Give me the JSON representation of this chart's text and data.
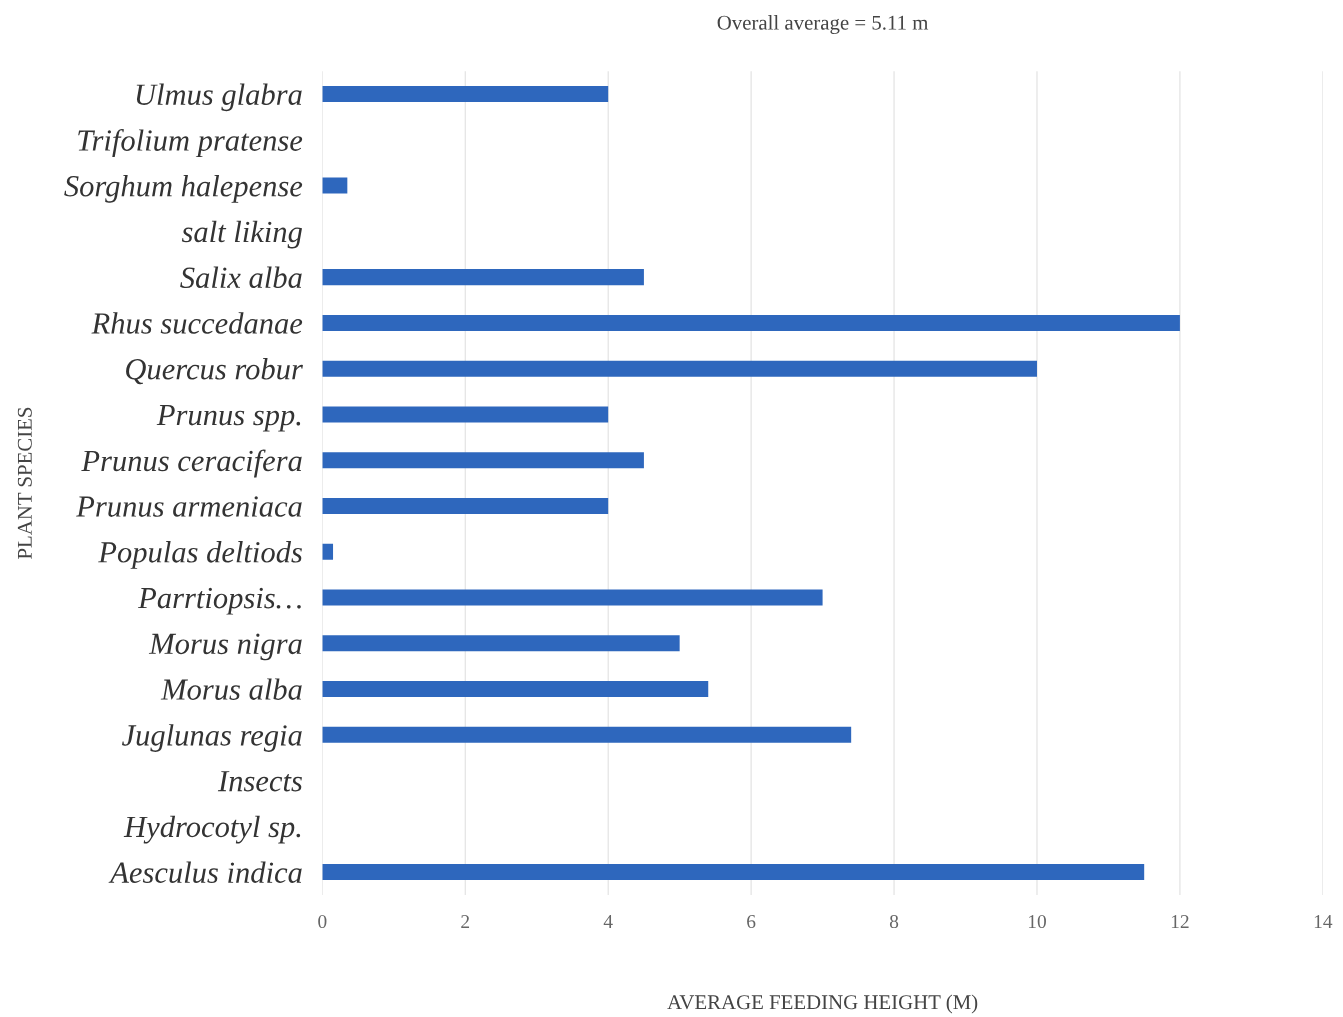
{
  "chart_data": {
    "type": "bar",
    "orientation": "horizontal",
    "title": "Overall average = 5.11 m",
    "xlabel": "AVERAGE FEEDING HEIGHT (M)",
    "ylabel": "PLANT SPECIES",
    "categories": [
      "Ulmus glabra",
      "Trifolium pratense",
      "Sorghum halepense",
      "salt liking",
      "Salix alba",
      "Rhus succedanae",
      "Quercus robur",
      "Prunus spp.",
      "Prunus ceracifera",
      "Prunus armeniaca",
      "Populas deltiods",
      "Parrtiopsis…",
      "Morus nigra",
      "Morus alba",
      "Juglunas regia",
      "Insects",
      "Hydrocotyl sp.",
      "Aesculus indica"
    ],
    "values": [
      4.0,
      0,
      0.35,
      0,
      4.5,
      12.0,
      10.0,
      4.0,
      4.5,
      4.0,
      0.15,
      7.0,
      5.0,
      5.4,
      7.4,
      0,
      0,
      11.5
    ],
    "color": "#2e67bd",
    "xlim": [
      0,
      14
    ],
    "xticks": [
      0,
      2,
      4,
      6,
      8,
      10,
      12,
      14
    ],
    "grid": "x",
    "legend": false
  }
}
